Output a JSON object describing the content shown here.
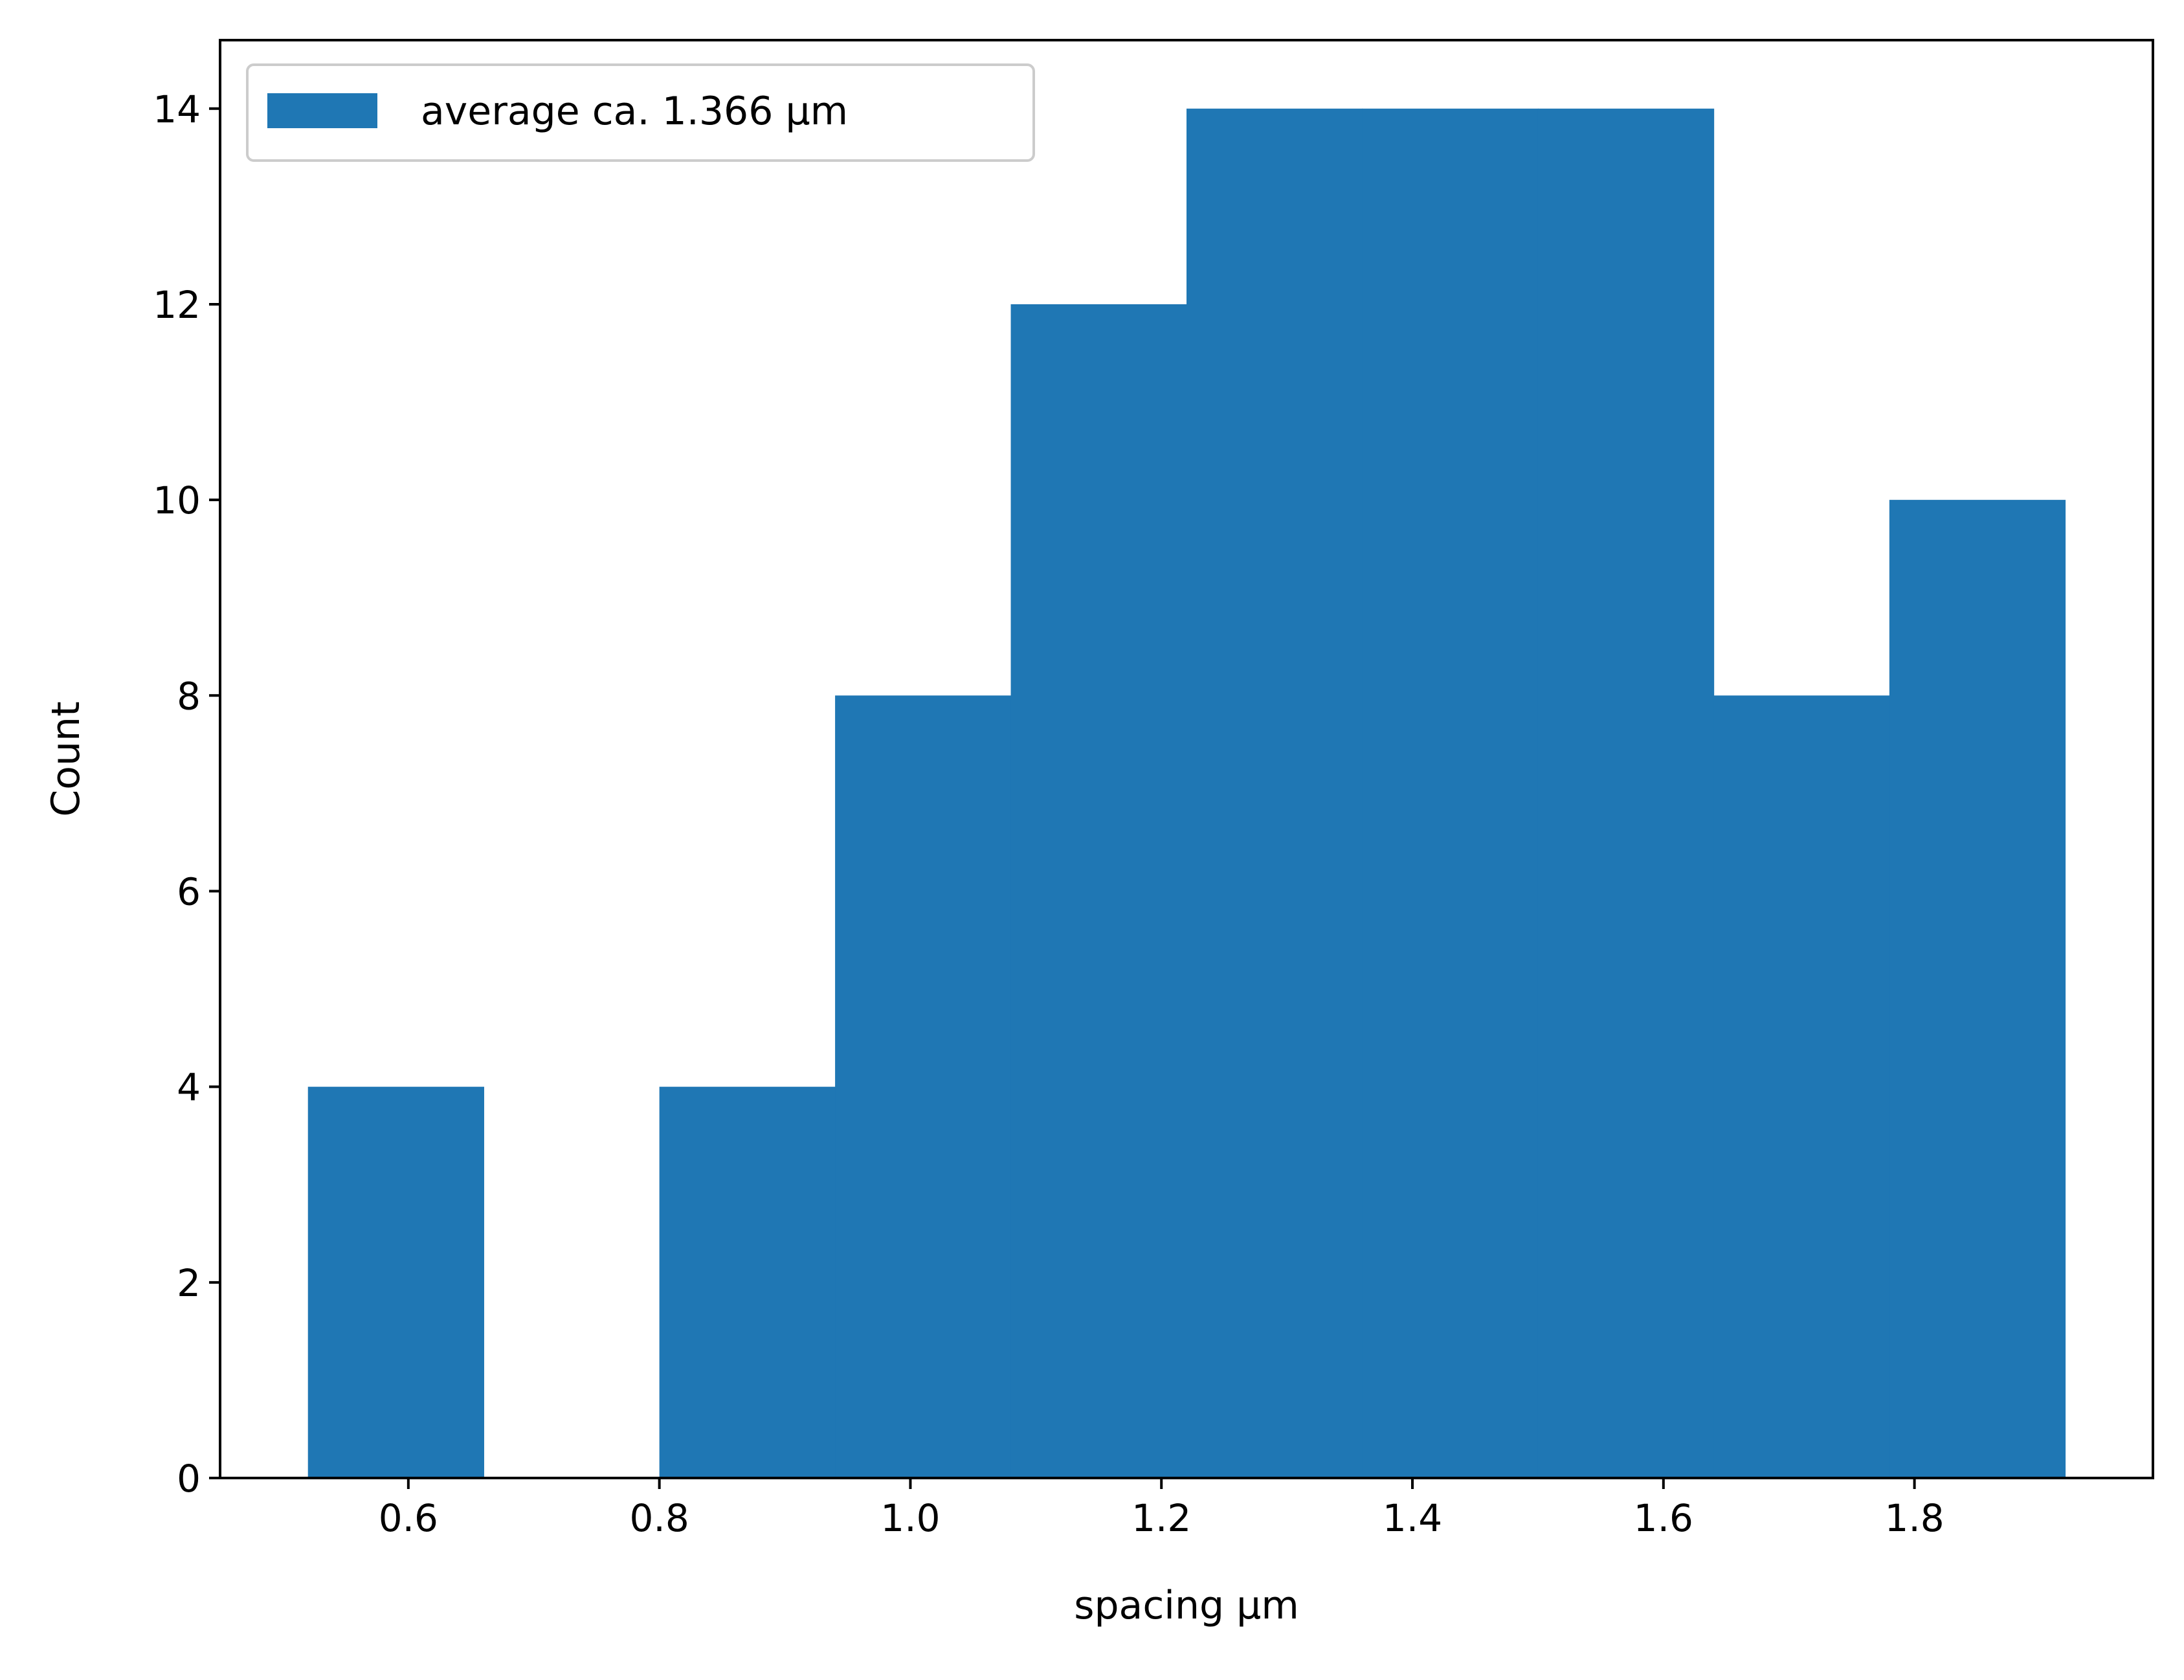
{
  "chart_data": {
    "type": "bar",
    "subtype": "histogram",
    "bins": [
      {
        "x0": 0.52,
        "x1": 0.66,
        "count": 4
      },
      {
        "x0": 0.66,
        "x1": 0.8,
        "count": 0
      },
      {
        "x0": 0.8,
        "x1": 0.94,
        "count": 4
      },
      {
        "x0": 0.94,
        "x1": 1.08,
        "count": 8
      },
      {
        "x0": 1.08,
        "x1": 1.22,
        "count": 12
      },
      {
        "x0": 1.22,
        "x1": 1.36,
        "count": 14
      },
      {
        "x0": 1.36,
        "x1": 1.5,
        "count": 14
      },
      {
        "x0": 1.5,
        "x1": 1.64,
        "count": 14
      },
      {
        "x0": 1.64,
        "x1": 1.78,
        "count": 8
      },
      {
        "x0": 1.78,
        "x1": 1.92,
        "count": 10
      }
    ],
    "series": [
      {
        "name": "average ca. 1.366 μm",
        "color": "#1f77b4"
      }
    ],
    "xlabel": "spacing μm",
    "ylabel": "Count",
    "xlim": [
      0.45,
      1.99
    ],
    "ylim": [
      0,
      14.7
    ],
    "xticks": [
      "0.6",
      "0.8",
      "1.0",
      "1.2",
      "1.4",
      "1.6",
      "1.8"
    ],
    "yticks": [
      "0",
      "2",
      "4",
      "6",
      "8",
      "10",
      "12",
      "14"
    ],
    "grid": false,
    "legend_position": "top-left"
  }
}
